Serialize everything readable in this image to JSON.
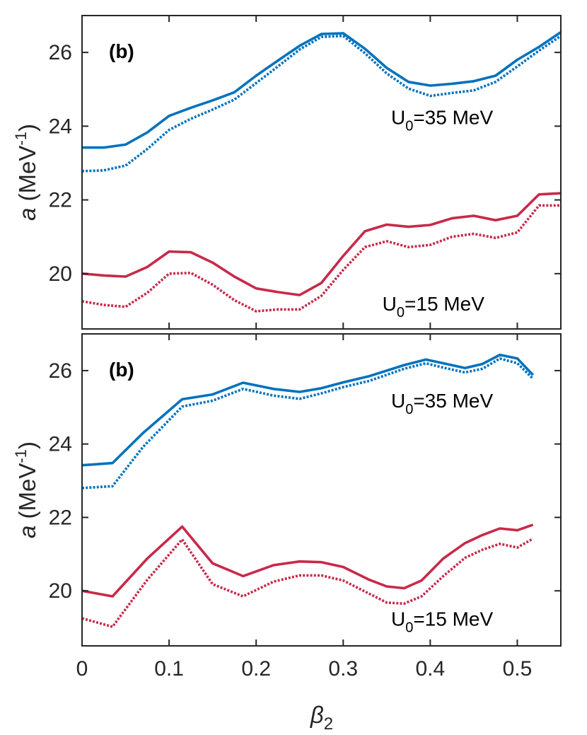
{
  "chart_data": [
    {
      "type": "line",
      "panel_label": "(b)",
      "ylabel": "a (MeV",
      "ylabel_sup": "-1",
      "ylabel_close": ")",
      "xlabel": "β",
      "xlabel_sub": "2",
      "xlim": [
        0,
        0.55
      ],
      "ylim": [
        18.5,
        27
      ],
      "xticks": [
        "0",
        "0.1",
        "0.2",
        "0.3",
        "0.4",
        "0.5"
      ],
      "yticks": [
        "20",
        "22",
        "24",
        "26"
      ],
      "annotations": [
        {
          "main": "U",
          "sub": "0",
          "rest": "=35 MeV",
          "x": 0.355,
          "y": 24.05
        },
        {
          "main": "U",
          "sub": "0",
          "rest": "=15 MeV",
          "x": 0.345,
          "y": 19.0
        }
      ],
      "series": [
        {
          "name": "U0=35 MeV (solid)",
          "color": "#0072BD",
          "style": "solid",
          "x": [
            0,
            0.025,
            0.05,
            0.075,
            0.1,
            0.125,
            0.15,
            0.175,
            0.2,
            0.225,
            0.25,
            0.275,
            0.3,
            0.325,
            0.35,
            0.375,
            0.4,
            0.425,
            0.45,
            0.475,
            0.5,
            0.525,
            0.55
          ],
          "values": [
            23.42,
            23.42,
            23.5,
            23.83,
            24.28,
            24.5,
            24.7,
            24.92,
            25.37,
            25.78,
            26.18,
            26.5,
            26.52,
            26.1,
            25.58,
            25.2,
            25.1,
            25.15,
            25.22,
            25.37,
            25.8,
            26.15,
            26.55
          ]
        },
        {
          "name": "U0=35 MeV (dotted)",
          "color": "#0072BD",
          "style": "dotted",
          "x": [
            0,
            0.025,
            0.05,
            0.075,
            0.1,
            0.125,
            0.15,
            0.175,
            0.2,
            0.225,
            0.25,
            0.275,
            0.3,
            0.325,
            0.35,
            0.375,
            0.4,
            0.425,
            0.45,
            0.475,
            0.5,
            0.525,
            0.55
          ],
          "values": [
            22.78,
            22.8,
            22.93,
            23.38,
            23.9,
            24.2,
            24.45,
            24.72,
            25.17,
            25.62,
            26.08,
            26.42,
            26.45,
            25.98,
            25.43,
            25.02,
            24.82,
            24.9,
            24.97,
            25.2,
            25.62,
            26.05,
            26.45
          ]
        },
        {
          "name": "U0=15 MeV (solid)",
          "color": "#C8294A",
          "style": "solid",
          "x": [
            0,
            0.025,
            0.05,
            0.075,
            0.1,
            0.125,
            0.15,
            0.175,
            0.2,
            0.225,
            0.25,
            0.275,
            0.3,
            0.325,
            0.35,
            0.375,
            0.4,
            0.425,
            0.45,
            0.475,
            0.5,
            0.525,
            0.55
          ],
          "values": [
            20.0,
            19.95,
            19.92,
            20.18,
            20.6,
            20.58,
            20.3,
            19.92,
            19.6,
            19.5,
            19.42,
            19.75,
            20.48,
            21.15,
            21.33,
            21.27,
            21.32,
            21.5,
            21.57,
            21.45,
            21.57,
            22.15,
            22.18
          ]
        },
        {
          "name": "U0=15 MeV (dotted)",
          "color": "#C8294A",
          "style": "dotted",
          "x": [
            0,
            0.025,
            0.05,
            0.075,
            0.1,
            0.125,
            0.15,
            0.175,
            0.2,
            0.225,
            0.25,
            0.275,
            0.3,
            0.325,
            0.35,
            0.375,
            0.4,
            0.425,
            0.45,
            0.475,
            0.5,
            0.525,
            0.55
          ],
          "values": [
            19.25,
            19.15,
            19.1,
            19.48,
            20.0,
            20.02,
            19.7,
            19.28,
            18.98,
            19.03,
            19.03,
            19.4,
            20.1,
            20.72,
            20.88,
            20.72,
            20.78,
            21.0,
            21.08,
            20.97,
            21.12,
            21.85,
            21.85
          ]
        }
      ]
    },
    {
      "type": "line",
      "panel_label": "(b)",
      "ylabel": "a (MeV",
      "ylabel_sup": "-1",
      "ylabel_close": ")",
      "xlabel": "β",
      "xlabel_sub": "2",
      "xlim": [
        0,
        0.55
      ],
      "ylim": [
        18.5,
        27
      ],
      "xticks": [
        "0",
        "0.1",
        "0.2",
        "0.3",
        "0.4",
        "0.5"
      ],
      "yticks": [
        "20",
        "22",
        "24",
        "26"
      ],
      "annotations": [
        {
          "main": "U",
          "sub": "0",
          "rest": "=35 MeV",
          "x": 0.355,
          "y": 25.0
        },
        {
          "main": "U",
          "sub": "0",
          "rest": "=15 MeV",
          "x": 0.355,
          "y": 19.05
        }
      ],
      "series": [
        {
          "name": "U0=35 MeV (solid)",
          "color": "#0072BD",
          "style": "solid",
          "x": [
            0,
            0.035,
            0.07,
            0.115,
            0.15,
            0.185,
            0.22,
            0.25,
            0.275,
            0.3,
            0.33,
            0.37,
            0.395,
            0.415,
            0.44,
            0.46,
            0.48,
            0.5,
            0.518
          ],
          "values": [
            23.42,
            23.48,
            24.3,
            25.22,
            25.35,
            25.67,
            25.5,
            25.42,
            25.52,
            25.68,
            25.85,
            26.15,
            26.3,
            26.2,
            26.07,
            26.18,
            26.43,
            26.33,
            25.88
          ]
        },
        {
          "name": "U0=35 MeV (dotted)",
          "color": "#0072BD",
          "style": "dotted",
          "x": [
            0,
            0.035,
            0.07,
            0.115,
            0.15,
            0.185,
            0.22,
            0.25,
            0.275,
            0.3,
            0.33,
            0.37,
            0.395,
            0.415,
            0.44,
            0.46,
            0.48,
            0.5,
            0.518
          ],
          "values": [
            22.8,
            22.85,
            23.92,
            25.02,
            25.18,
            25.5,
            25.32,
            25.23,
            25.38,
            25.55,
            25.72,
            26.05,
            26.2,
            26.08,
            25.95,
            26.05,
            26.33,
            26.2,
            25.78
          ]
        },
        {
          "name": "U0=15 MeV (solid)",
          "color": "#C8294A",
          "style": "solid",
          "x": [
            0,
            0.035,
            0.075,
            0.115,
            0.15,
            0.185,
            0.22,
            0.25,
            0.275,
            0.3,
            0.33,
            0.35,
            0.37,
            0.39,
            0.415,
            0.44,
            0.46,
            0.48,
            0.5,
            0.518
          ],
          "values": [
            20.0,
            19.85,
            20.88,
            21.75,
            20.75,
            20.4,
            20.7,
            20.8,
            20.78,
            20.65,
            20.3,
            20.12,
            20.07,
            20.28,
            20.88,
            21.3,
            21.52,
            21.7,
            21.65,
            21.8
          ]
        },
        {
          "name": "U0=15 MeV (dotted)",
          "color": "#C8294A",
          "style": "dotted",
          "x": [
            0,
            0.035,
            0.075,
            0.115,
            0.15,
            0.185,
            0.22,
            0.25,
            0.275,
            0.3,
            0.33,
            0.35,
            0.37,
            0.39,
            0.415,
            0.44,
            0.46,
            0.48,
            0.5,
            0.518
          ],
          "values": [
            19.25,
            19.02,
            20.3,
            21.4,
            20.18,
            19.85,
            20.25,
            20.42,
            20.42,
            20.28,
            19.92,
            19.68,
            19.65,
            19.85,
            20.4,
            20.9,
            21.12,
            21.28,
            21.18,
            21.42
          ]
        }
      ]
    }
  ]
}
